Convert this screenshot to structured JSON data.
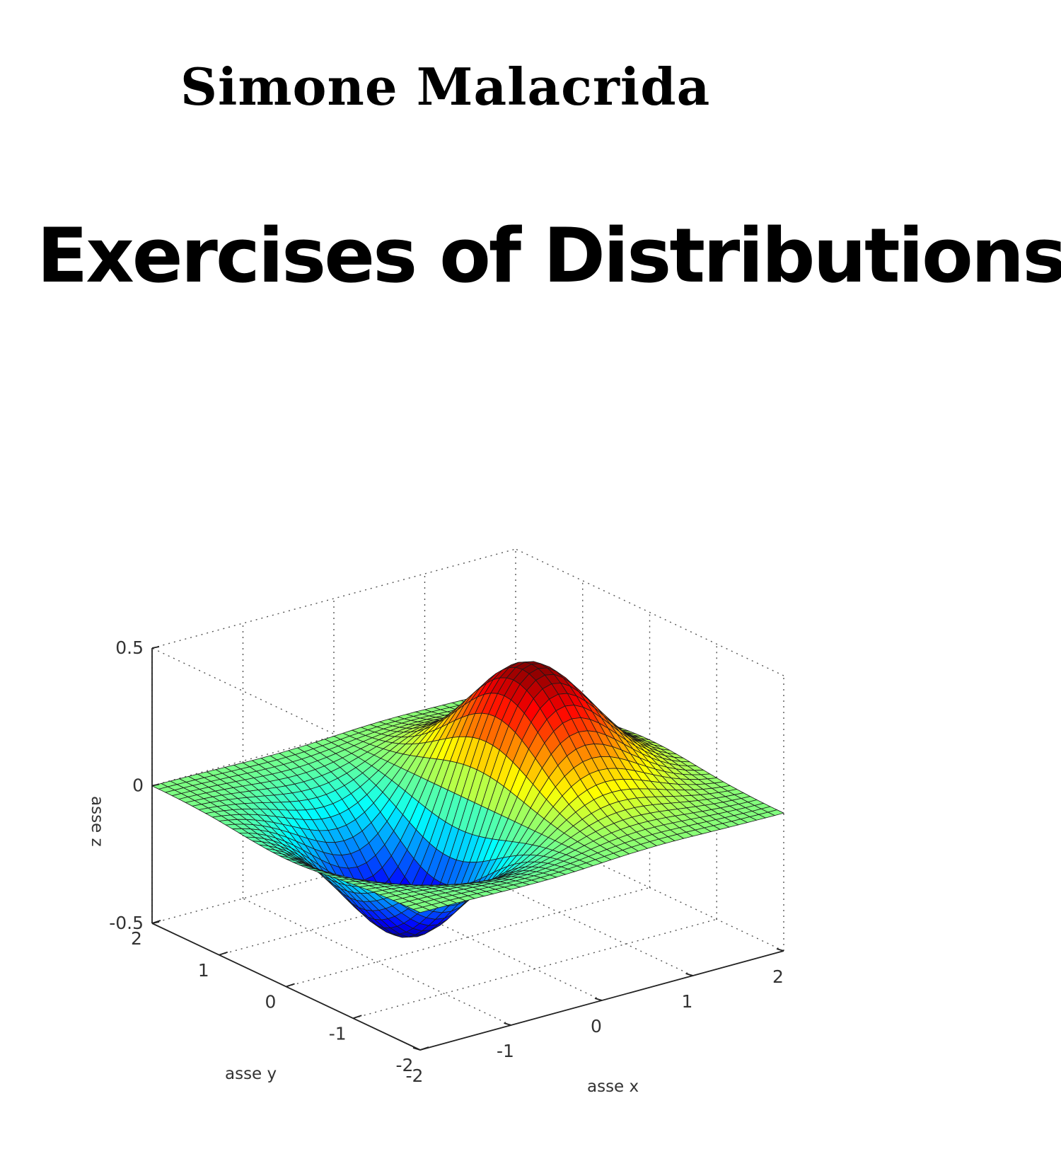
{
  "cover": {
    "author": "Simone Malacrida",
    "title": "Exercises of Distributions"
  },
  "chart_data": {
    "type": "surface",
    "title": "",
    "xlabel": "asse x",
    "ylabel": "asse y",
    "zlabel": "asse z",
    "xlim": [
      -2,
      2
    ],
    "ylim": [
      -2,
      2
    ],
    "zlim": [
      -0.5,
      0.5
    ],
    "x_ticks": [
      "-2",
      "-1",
      "0",
      "1",
      "2"
    ],
    "y_ticks": [
      "-2",
      "-1",
      "0",
      "1",
      "2"
    ],
    "z_ticks": [
      "-0.5",
      "0",
      "0.5"
    ],
    "function": "z = x * exp(-x^2 - y^2)",
    "z_min": -0.43,
    "z_max": 0.43,
    "grid": true,
    "colormap": "jet"
  }
}
